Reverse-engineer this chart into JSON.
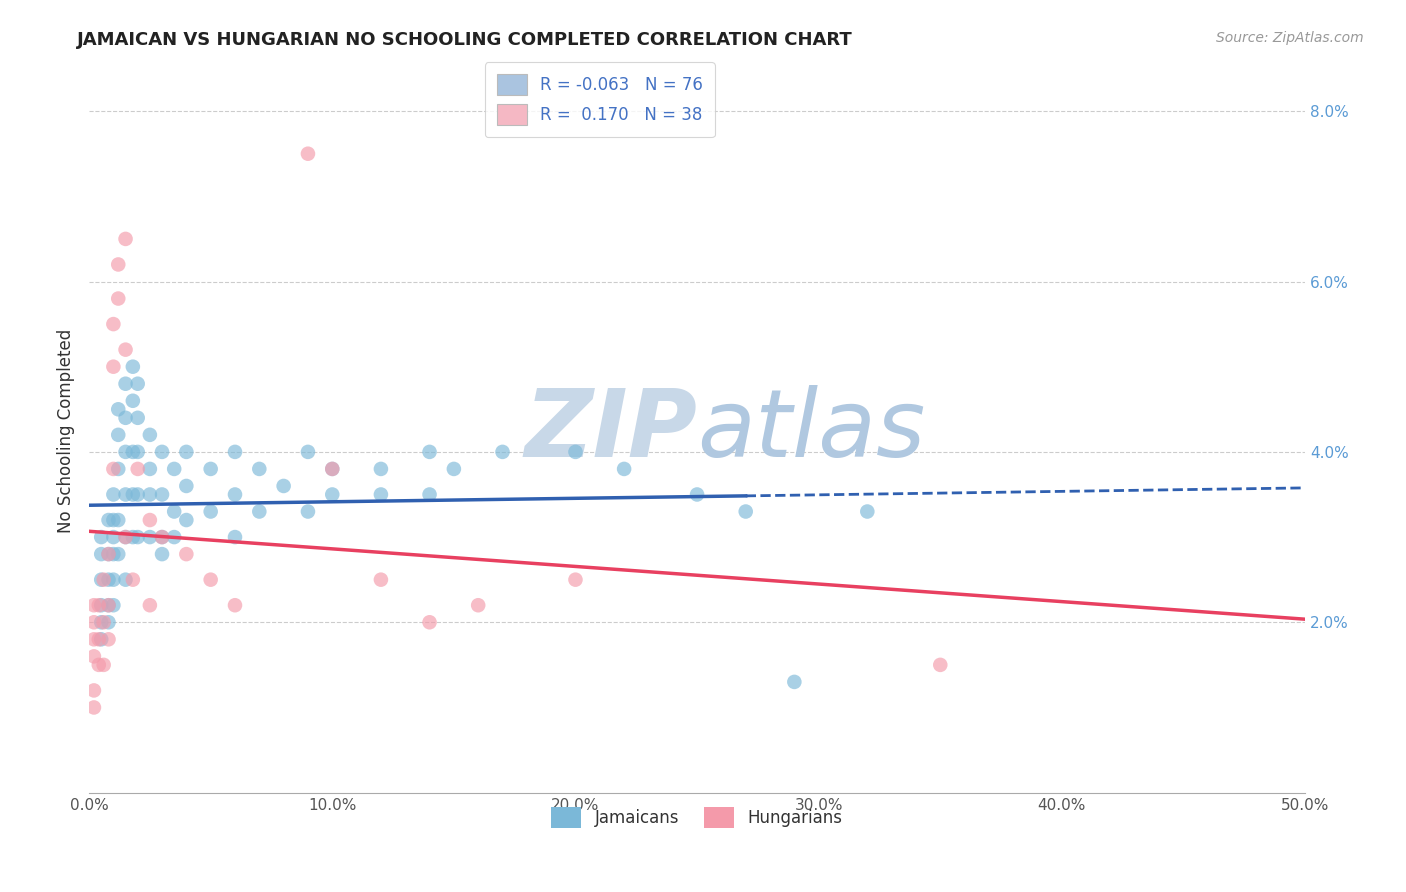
{
  "title": "JAMAICAN VS HUNGARIAN NO SCHOOLING COMPLETED CORRELATION CHART",
  "source": "Source: ZipAtlas.com",
  "ylabel": "No Schooling Completed",
  "xlim": [
    0.0,
    0.5
  ],
  "ylim": [
    0.0,
    0.085
  ],
  "yticks": [
    0.02,
    0.04,
    0.06,
    0.08
  ],
  "ytick_labels": [
    "2.0%",
    "4.0%",
    "6.0%",
    "8.0%"
  ],
  "xticks": [
    0.0,
    0.1,
    0.2,
    0.3,
    0.4,
    0.5
  ],
  "xtick_labels": [
    "0.0%",
    "10.0%",
    "20.0%",
    "30.0%",
    "40.0%",
    "50.0%"
  ],
  "legend_entries": [
    {
      "label_r": "R = -0.063",
      "label_n": "N = 76",
      "color": "#aac4e0"
    },
    {
      "label_r": "R =  0.170",
      "label_n": "N = 38",
      "color": "#f5b8c4"
    }
  ],
  "jamaican_color": "#7bb8d8",
  "hungarian_color": "#f49aaa",
  "jamaican_line_color": "#3060b0",
  "hungarian_line_color": "#e84060",
  "watermark_zip": "ZIP",
  "watermark_atlas": "atlas",
  "jamaican_points": [
    [
      0.005,
      0.03
    ],
    [
      0.005,
      0.028
    ],
    [
      0.005,
      0.025
    ],
    [
      0.005,
      0.022
    ],
    [
      0.005,
      0.02
    ],
    [
      0.005,
      0.018
    ],
    [
      0.008,
      0.032
    ],
    [
      0.008,
      0.028
    ],
    [
      0.008,
      0.025
    ],
    [
      0.008,
      0.022
    ],
    [
      0.008,
      0.02
    ],
    [
      0.01,
      0.035
    ],
    [
      0.01,
      0.032
    ],
    [
      0.01,
      0.03
    ],
    [
      0.01,
      0.028
    ],
    [
      0.01,
      0.025
    ],
    [
      0.01,
      0.022
    ],
    [
      0.012,
      0.045
    ],
    [
      0.012,
      0.042
    ],
    [
      0.012,
      0.038
    ],
    [
      0.012,
      0.032
    ],
    [
      0.012,
      0.028
    ],
    [
      0.015,
      0.048
    ],
    [
      0.015,
      0.044
    ],
    [
      0.015,
      0.04
    ],
    [
      0.015,
      0.035
    ],
    [
      0.015,
      0.03
    ],
    [
      0.015,
      0.025
    ],
    [
      0.018,
      0.05
    ],
    [
      0.018,
      0.046
    ],
    [
      0.018,
      0.04
    ],
    [
      0.018,
      0.035
    ],
    [
      0.018,
      0.03
    ],
    [
      0.02,
      0.048
    ],
    [
      0.02,
      0.044
    ],
    [
      0.02,
      0.04
    ],
    [
      0.02,
      0.035
    ],
    [
      0.02,
      0.03
    ],
    [
      0.025,
      0.042
    ],
    [
      0.025,
      0.038
    ],
    [
      0.025,
      0.035
    ],
    [
      0.025,
      0.03
    ],
    [
      0.03,
      0.04
    ],
    [
      0.03,
      0.035
    ],
    [
      0.03,
      0.03
    ],
    [
      0.03,
      0.028
    ],
    [
      0.035,
      0.038
    ],
    [
      0.035,
      0.033
    ],
    [
      0.035,
      0.03
    ],
    [
      0.04,
      0.04
    ],
    [
      0.04,
      0.036
    ],
    [
      0.04,
      0.032
    ],
    [
      0.05,
      0.038
    ],
    [
      0.05,
      0.033
    ],
    [
      0.06,
      0.04
    ],
    [
      0.06,
      0.035
    ],
    [
      0.06,
      0.03
    ],
    [
      0.07,
      0.038
    ],
    [
      0.07,
      0.033
    ],
    [
      0.08,
      0.036
    ],
    [
      0.09,
      0.04
    ],
    [
      0.09,
      0.033
    ],
    [
      0.1,
      0.038
    ],
    [
      0.1,
      0.035
    ],
    [
      0.12,
      0.038
    ],
    [
      0.12,
      0.035
    ],
    [
      0.14,
      0.04
    ],
    [
      0.14,
      0.035
    ],
    [
      0.15,
      0.038
    ],
    [
      0.17,
      0.04
    ],
    [
      0.2,
      0.04
    ],
    [
      0.22,
      0.038
    ],
    [
      0.25,
      0.035
    ],
    [
      0.27,
      0.033
    ],
    [
      0.29,
      0.013
    ],
    [
      0.32,
      0.033
    ]
  ],
  "hungarian_points": [
    [
      0.002,
      0.022
    ],
    [
      0.002,
      0.02
    ],
    [
      0.002,
      0.018
    ],
    [
      0.002,
      0.016
    ],
    [
      0.002,
      0.012
    ],
    [
      0.002,
      0.01
    ],
    [
      0.004,
      0.022
    ],
    [
      0.004,
      0.018
    ],
    [
      0.004,
      0.015
    ],
    [
      0.006,
      0.025
    ],
    [
      0.006,
      0.02
    ],
    [
      0.006,
      0.015
    ],
    [
      0.008,
      0.028
    ],
    [
      0.008,
      0.022
    ],
    [
      0.008,
      0.018
    ],
    [
      0.01,
      0.055
    ],
    [
      0.01,
      0.05
    ],
    [
      0.01,
      0.038
    ],
    [
      0.012,
      0.062
    ],
    [
      0.012,
      0.058
    ],
    [
      0.015,
      0.065
    ],
    [
      0.015,
      0.052
    ],
    [
      0.015,
      0.03
    ],
    [
      0.018,
      0.025
    ],
    [
      0.02,
      0.038
    ],
    [
      0.025,
      0.032
    ],
    [
      0.025,
      0.022
    ],
    [
      0.03,
      0.03
    ],
    [
      0.04,
      0.028
    ],
    [
      0.05,
      0.025
    ],
    [
      0.06,
      0.022
    ],
    [
      0.09,
      0.075
    ],
    [
      0.1,
      0.038
    ],
    [
      0.12,
      0.025
    ],
    [
      0.14,
      0.02
    ],
    [
      0.16,
      0.022
    ],
    [
      0.2,
      0.025
    ],
    [
      0.35,
      0.015
    ]
  ]
}
